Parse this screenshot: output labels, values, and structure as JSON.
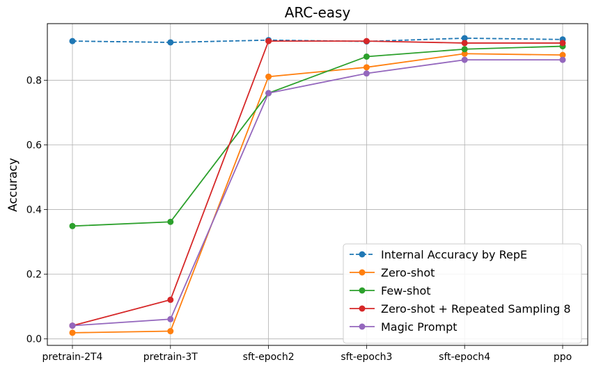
{
  "chart_data": {
    "type": "line",
    "title": "ARC-easy",
    "xlabel": "",
    "ylabel": "Accuracy",
    "categories": [
      "pretrain-2T4",
      "pretrain-3T",
      "sft-epoch2",
      "sft-epoch3",
      "sft-epoch4",
      "ppo"
    ],
    "yticks": [
      "0.0",
      "0.2",
      "0.4",
      "0.6",
      "0.8"
    ],
    "ylim": [
      -0.02,
      0.975
    ],
    "grid": true,
    "legend_position": "bottom-right",
    "series": [
      {
        "name": "Internal Accuracy by RepE",
        "color": "#1f77b4",
        "dashed": true,
        "values": [
          0.921,
          0.917,
          0.924,
          0.92,
          0.93,
          0.926
        ]
      },
      {
        "name": "Zero-shot",
        "color": "#ff7f0e",
        "dashed": false,
        "values": [
          0.019,
          0.024,
          0.811,
          0.84,
          0.882,
          0.878
        ]
      },
      {
        "name": "Few-shot",
        "color": "#2ca02c",
        "dashed": false,
        "values": [
          0.349,
          0.362,
          0.76,
          0.873,
          0.896,
          0.905
        ]
      },
      {
        "name": "Zero-shot + Repeated Sampling 8",
        "color": "#d62728",
        "dashed": false,
        "values": [
          0.041,
          0.121,
          0.921,
          0.921,
          0.915,
          0.915
        ]
      },
      {
        "name": "Magic Prompt",
        "color": "#9467bd",
        "dashed": false,
        "values": [
          0.041,
          0.061,
          0.76,
          0.821,
          0.863,
          0.863
        ]
      }
    ]
  }
}
